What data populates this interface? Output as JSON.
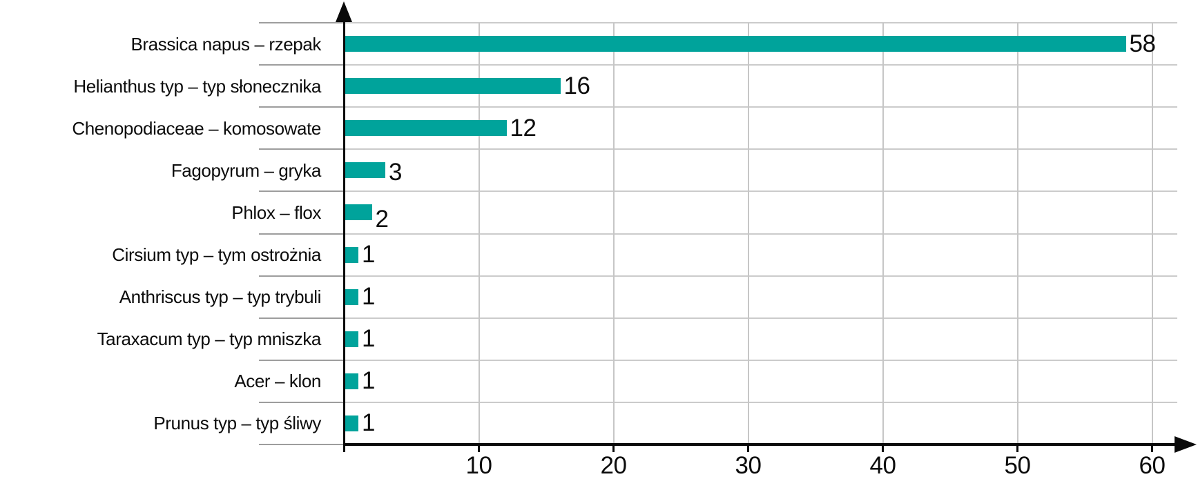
{
  "chart_data": {
    "type": "bar",
    "orientation": "horizontal",
    "title": "",
    "xlabel": "",
    "ylabel": "",
    "grid": true,
    "legend": false,
    "categories": [
      "Brassica napus – rzepak",
      "Helianthus typ – typ słonecznika",
      "Chenopodiaceae – komosowate",
      "Fagopyrum – gryka",
      "Phlox – flox",
      "Cirsium typ – tym ostrożnia",
      "Anthriscus typ – typ trybuli",
      "Taraxacum typ – typ mniszka",
      "Acer – klon",
      "Prunus typ – typ śliwy"
    ],
    "values": [
      58,
      16,
      12,
      3,
      2,
      1,
      1,
      1,
      1,
      1
    ],
    "data_labels": [
      "58",
      "16",
      "12",
      "3",
      "2",
      "1",
      "1",
      "1",
      "1",
      "1"
    ],
    "x_ticks": [
      10,
      20,
      30,
      40,
      50,
      60
    ],
    "xlim": [
      0,
      63
    ],
    "bar_color": "#00a39b",
    "axis_color": "#0a0a0a",
    "gridline_color": "#cbcbcb"
  }
}
